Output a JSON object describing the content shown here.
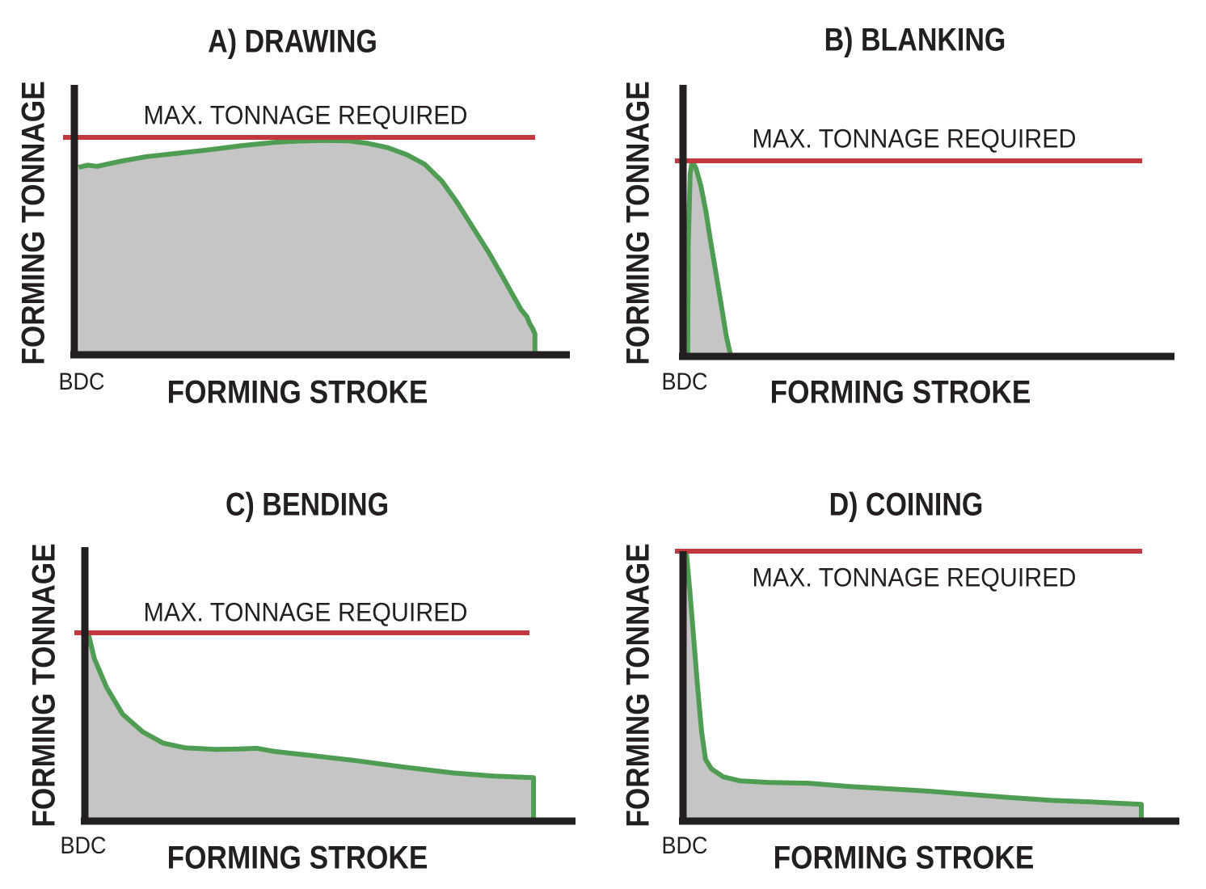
{
  "colors": {
    "background": "#FFFFFF",
    "max_line": "#C2383E",
    "curve_stroke": "#4F9C53",
    "curve_fill": "#C4C5C4",
    "axis": "#231F20",
    "text": "#231F20"
  },
  "chart_data": [
    {
      "id": "drawing",
      "type": "area",
      "title": "A) DRAWING",
      "xlabel": "FORMING STROKE",
      "ylabel": "FORMING TONNAGE",
      "origin_label": "BDC",
      "max_line_label": "MAX. TONNAGE REQUIRED",
      "max_line_value_pct": 100,
      "x_units": "percent of forming stroke",
      "y_units": "percent of max tonnage required",
      "points_pct": [
        [
          0.2,
          86
        ],
        [
          2,
          87
        ],
        [
          4,
          86.5
        ],
        [
          9,
          89
        ],
        [
          14,
          91
        ],
        [
          20,
          92.5
        ],
        [
          27,
          94.3
        ],
        [
          33.5,
          96.2
        ],
        [
          40,
          97.7
        ],
        [
          45,
          98.3
        ],
        [
          50,
          98.6
        ],
        [
          55,
          98.4
        ],
        [
          59,
          97.2
        ],
        [
          63,
          95.2
        ],
        [
          67,
          91.8
        ],
        [
          70.5,
          87.5
        ],
        [
          74,
          79.6
        ],
        [
          77,
          70
        ],
        [
          80.3,
          58
        ],
        [
          83.6,
          46
        ],
        [
          86.4,
          34.7
        ],
        [
          88.5,
          26
        ],
        [
          90.1,
          19.6
        ],
        [
          91.3,
          16.2
        ],
        [
          91.8,
          13.2
        ],
        [
          92.4,
          10.9
        ],
        [
          92.9,
          8.3
        ],
        [
          92.9,
          0
        ]
      ]
    },
    {
      "id": "blanking",
      "type": "area",
      "title": "B) BLANKING",
      "xlabel": "FORMING STROKE",
      "ylabel": "FORMING TONNAGE",
      "origin_label": "BDC",
      "max_line_label": "MAX. TONNAGE REQUIRED",
      "max_line_value_pct": 100,
      "x_units": "percent of forming stroke",
      "y_units": "percent of max tonnage required",
      "points_pct": [
        [
          0.3,
          0
        ],
        [
          0.4,
          55
        ],
        [
          0.8,
          93
        ],
        [
          1.2,
          100
        ],
        [
          2,
          96
        ],
        [
          3,
          87
        ],
        [
          4,
          74
        ],
        [
          5,
          58
        ],
        [
          6.2,
          40
        ],
        [
          7.3,
          23
        ],
        [
          8.2,
          9
        ],
        [
          8.8,
          2
        ],
        [
          9,
          0
        ]
      ]
    },
    {
      "id": "bending",
      "type": "area",
      "title": "C) BENDING",
      "xlabel": "FORMING STROKE",
      "ylabel": "FORMING TONNAGE",
      "origin_label": "BDC",
      "max_line_label": "MAX. TONNAGE REQUIRED",
      "max_line_value_pct": 100,
      "x_units": "percent of forming stroke",
      "y_units": "percent of max tonnage required",
      "points_pct": [
        [
          0,
          100
        ],
        [
          1.3,
          86
        ],
        [
          3.8,
          70.5
        ],
        [
          7.1,
          56
        ],
        [
          11.2,
          46.5
        ],
        [
          15.4,
          40.4
        ],
        [
          20,
          37.8
        ],
        [
          26.4,
          37
        ],
        [
          31,
          37.2
        ],
        [
          34.7,
          37.6
        ],
        [
          38,
          36
        ],
        [
          45.1,
          33.9
        ],
        [
          55,
          30.9
        ],
        [
          65,
          27.4
        ],
        [
          74.9,
          24.3
        ],
        [
          83.1,
          22.6
        ],
        [
          91.4,
          21.7
        ],
        [
          91.4,
          0
        ]
      ]
    },
    {
      "id": "coining",
      "type": "area",
      "title": "D) COINING",
      "xlabel": "FORMING STROKE",
      "ylabel": "FORMING TONNAGE",
      "origin_label": "BDC",
      "max_line_label": "MAX. TONNAGE REQUIRED",
      "max_line_value_pct": 100,
      "x_units": "percent of forming stroke",
      "y_units": "percent of max tonnage required",
      "points_pct": [
        [
          0,
          100
        ],
        [
          0.7,
          85.5
        ],
        [
          1.5,
          67.4
        ],
        [
          2.3,
          49.2
        ],
        [
          3.1,
          32.6
        ],
        [
          3.9,
          22
        ],
        [
          5.1,
          18.4
        ],
        [
          7.5,
          15.4
        ],
        [
          10.8,
          13.9
        ],
        [
          16.6,
          13.3
        ],
        [
          24.8,
          13
        ],
        [
          33,
          11.8
        ],
        [
          41.1,
          10.9
        ],
        [
          49.3,
          10
        ],
        [
          57.5,
          8.8
        ],
        [
          65.7,
          7.6
        ],
        [
          73.9,
          6.6
        ],
        [
          82.1,
          6
        ],
        [
          88.7,
          5.4
        ],
        [
          92.3,
          5.1
        ],
        [
          92.3,
          0
        ]
      ]
    }
  ]
}
